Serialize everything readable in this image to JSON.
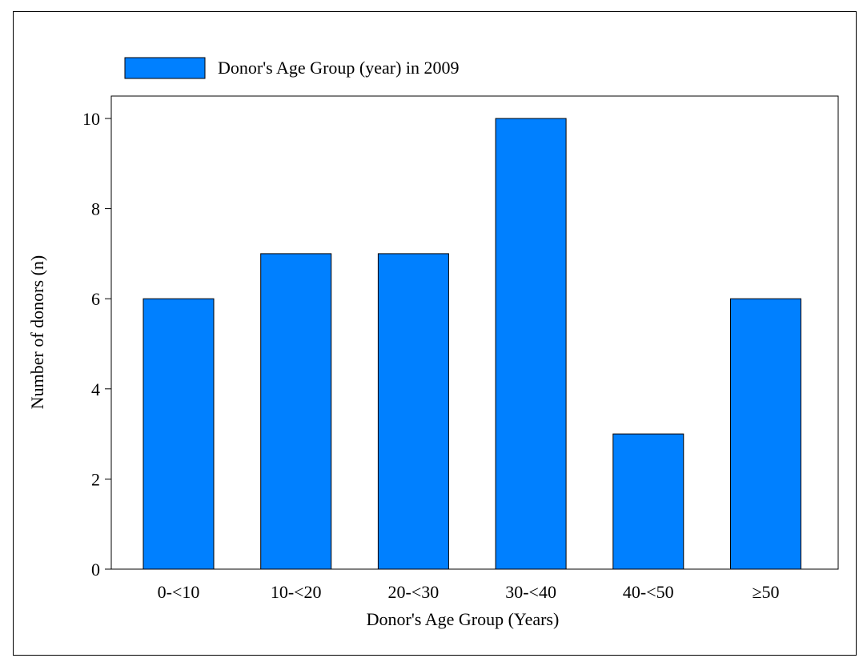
{
  "chart_data": {
    "type": "bar",
    "categories": [
      "0-<10",
      "10-<20",
      "20-<30",
      "30-<40",
      "40-<50",
      "≥50"
    ],
    "series": [
      {
        "name": "Donor's Age Group (year) in 2009",
        "values": [
          6,
          7,
          7,
          10,
          3,
          6
        ],
        "color": "#0080FF"
      }
    ],
    "xlabel": "Donor's Age Group (Years)",
    "ylabel": "Number of donors (n)",
    "ylim": [
      0,
      10.5
    ],
    "yticks": [
      0,
      2,
      4,
      6,
      8,
      10
    ],
    "grid": false,
    "legend_position": "top-left"
  }
}
